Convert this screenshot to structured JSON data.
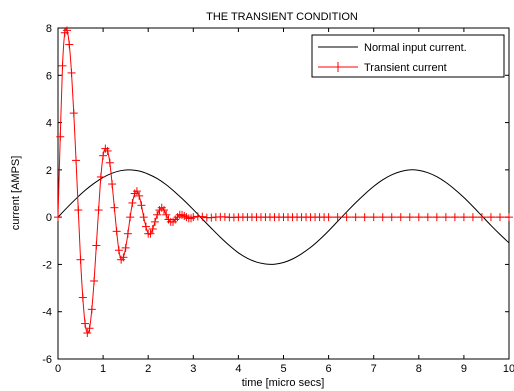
{
  "chart_data": {
    "type": "line",
    "title": "THE TRANSIENT CONDITION",
    "xlabel": "time [micro secs]",
    "ylabel": "current [AMPS]",
    "xlim": [
      0,
      10
    ],
    "ylim": [
      -6,
      8
    ],
    "x_ticks": [
      0,
      1,
      2,
      3,
      4,
      5,
      6,
      7,
      8,
      9,
      10
    ],
    "y_ticks": [
      -6,
      -4,
      -2,
      0,
      2,
      4,
      6,
      8
    ],
    "grid": false,
    "legend_position": "top-right",
    "series": [
      {
        "name": "Normal input current.",
        "color": "#000000",
        "marker": "none",
        "x": [
          0,
          0.2,
          0.4,
          0.6,
          0.8,
          1.0,
          1.2,
          1.4,
          1.6,
          1.8,
          2.0,
          2.2,
          2.4,
          2.6,
          2.8,
          3.0,
          3.2,
          3.4,
          3.6,
          3.8,
          4.0,
          4.2,
          4.4,
          4.6,
          4.8,
          5.0,
          5.2,
          5.4,
          5.6,
          5.8,
          6.0,
          6.2,
          6.4,
          6.6,
          6.8,
          7.0,
          7.2,
          7.4,
          7.6,
          7.8,
          8.0,
          8.2,
          8.4,
          8.6,
          8.8,
          9.0,
          9.2,
          9.4,
          9.6,
          9.8,
          10.0
        ],
        "y": [
          0.0,
          0.4,
          0.78,
          1.13,
          1.43,
          1.68,
          1.86,
          1.97,
          2.0,
          1.95,
          1.82,
          1.63,
          1.37,
          1.05,
          0.7,
          0.32,
          -0.08,
          -0.47,
          -0.85,
          -1.2,
          -1.51,
          -1.74,
          -1.9,
          -1.98,
          -1.99,
          -1.92,
          -1.77,
          -1.55,
          -1.28,
          -0.95,
          -0.58,
          -0.18,
          0.22,
          0.61,
          0.97,
          1.3,
          1.58,
          1.79,
          1.93,
          2.0,
          1.98,
          1.88,
          1.71,
          1.47,
          1.17,
          0.83,
          0.45,
          0.05,
          -0.35,
          -0.73,
          -1.09
        ]
      },
      {
        "name": "Transient current",
        "color": "#ff0000",
        "marker": "plus",
        "x": [
          0,
          0.05,
          0.1,
          0.15,
          0.2,
          0.25,
          0.3,
          0.35,
          0.4,
          0.45,
          0.5,
          0.55,
          0.6,
          0.65,
          0.7,
          0.75,
          0.8,
          0.85,
          0.9,
          0.95,
          1.0,
          1.05,
          1.1,
          1.15,
          1.2,
          1.25,
          1.3,
          1.35,
          1.4,
          1.45,
          1.5,
          1.55,
          1.6,
          1.65,
          1.7,
          1.75,
          1.8,
          1.85,
          1.9,
          1.95,
          2.0,
          2.05,
          2.1,
          2.15,
          2.2,
          2.25,
          2.3,
          2.35,
          2.4,
          2.45,
          2.5,
          2.55,
          2.6,
          2.65,
          2.7,
          2.75,
          2.8,
          2.85,
          2.9,
          2.95,
          3.0,
          3.1,
          3.2,
          3.3,
          3.4,
          3.5,
          3.6,
          3.7,
          3.8,
          3.9,
          4.0,
          4.1,
          4.2,
          4.3,
          4.4,
          4.5,
          4.6,
          4.7,
          4.8,
          4.9,
          5.0,
          5.1,
          5.2,
          5.3,
          5.4,
          5.5,
          5.6,
          5.7,
          5.8,
          5.9,
          6.0,
          6.2,
          6.4,
          6.6,
          6.8,
          7.0,
          7.2,
          7.4,
          7.6,
          7.8,
          8.0,
          8.2,
          8.4,
          8.6,
          8.8,
          9.0,
          9.2,
          9.4,
          9.6,
          9.8,
          10.0
        ],
        "y": [
          0.0,
          3.4,
          6.4,
          7.8,
          7.9,
          7.3,
          6.1,
          4.4,
          2.4,
          0.3,
          -1.8,
          -3.4,
          -4.5,
          -4.9,
          -4.7,
          -3.9,
          -2.7,
          -1.2,
          0.3,
          1.7,
          2.6,
          2.9,
          2.8,
          2.3,
          1.4,
          0.4,
          -0.6,
          -1.4,
          -1.8,
          -1.7,
          -1.3,
          -0.7,
          0.0,
          0.6,
          1.0,
          1.1,
          0.9,
          0.5,
          0.0,
          -0.4,
          -0.7,
          -0.7,
          -0.5,
          -0.2,
          0.1,
          0.3,
          0.4,
          0.3,
          0.1,
          -0.1,
          -0.2,
          -0.2,
          -0.1,
          0.0,
          0.1,
          0.1,
          0.05,
          0.0,
          -0.05,
          -0.05,
          0.0,
          0.03,
          0.02,
          -0.02,
          -0.02,
          0.0,
          0.01,
          0.01,
          -0.01,
          -0.01,
          0.0,
          0.0,
          0.0,
          0.0,
          0.0,
          0.0,
          0.0,
          0.0,
          0.0,
          0.0,
          0.0,
          0.0,
          0.0,
          0.0,
          0.0,
          0.0,
          0.0,
          0.0,
          0.0,
          0.0,
          0.0,
          0.0,
          0.0,
          0.0,
          0.0,
          0.0,
          0.0,
          0.0,
          0.0,
          0.0,
          0.0,
          0.0,
          0.0,
          0.0,
          0.0,
          0.0,
          0.0,
          0.0,
          0.0,
          0.0,
          0.0
        ]
      }
    ]
  }
}
